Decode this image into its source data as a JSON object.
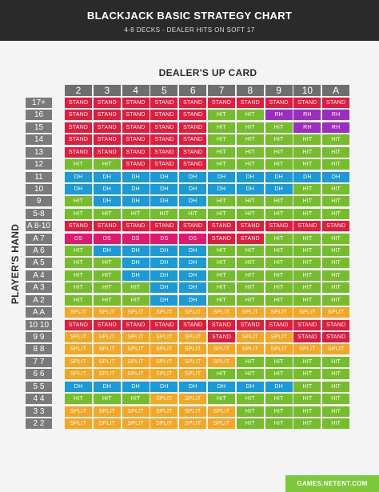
{
  "header": {
    "title": "BLACKJACK BASIC STRATEGY CHART",
    "subtitle": "4-8 DECKS - DEALER HITS ON SOFT 17"
  },
  "labels": {
    "dealer_up_card": "DEALER'S UP CARD",
    "players_hand": "PLAYER'S HAND"
  },
  "colors": {
    "STAND": "#e31b3c",
    "HIT": "#76bd2e",
    "DH": "#1a9bd7",
    "DS": "#e0196f",
    "RH": "#9d2cc0",
    "SPLIT": "#f5a623"
  },
  "dealer_cards": [
    "2",
    "3",
    "4",
    "5",
    "6",
    "7",
    "8",
    "9",
    "10",
    "A"
  ],
  "rows": [
    {
      "hand": "17+",
      "actions": [
        "STAND",
        "STAND",
        "STAND",
        "STAND",
        "STAND",
        "STAND",
        "STAND",
        "STAND",
        "STAND",
        "STAND"
      ]
    },
    {
      "hand": "16",
      "actions": [
        "STAND",
        "STAND",
        "STAND",
        "STAND",
        "STAND",
        "HIT",
        "HIT",
        "RH",
        "RH",
        "RH"
      ]
    },
    {
      "hand": "15",
      "actions": [
        "STAND",
        "STAND",
        "STAND",
        "STAND",
        "STAND",
        "HIT",
        "HIT",
        "HIT",
        "RH",
        "RH"
      ]
    },
    {
      "hand": "14",
      "actions": [
        "STAND",
        "STAND",
        "STAND",
        "STAND",
        "STAND",
        "HIT",
        "HIT",
        "HIT",
        "HIT",
        "HIT"
      ]
    },
    {
      "hand": "13",
      "actions": [
        "STAND",
        "STAND",
        "STAND",
        "STAND",
        "STAND",
        "HIT",
        "HIT",
        "HIT",
        "HIT",
        "HIT"
      ]
    },
    {
      "hand": "12",
      "actions": [
        "HIT",
        "HIT",
        "STAND",
        "STAND",
        "STAND",
        "HIT",
        "HIT",
        "HIT",
        "HIT",
        "HIT"
      ]
    },
    {
      "hand": "11",
      "actions": [
        "DH",
        "DH",
        "DH",
        "DH",
        "DH",
        "DH",
        "DH",
        "DH",
        "DH",
        "DH"
      ]
    },
    {
      "hand": "10",
      "actions": [
        "DH",
        "DH",
        "DH",
        "DH",
        "DH",
        "DH",
        "DH",
        "DH",
        "HIT",
        "HIT"
      ]
    },
    {
      "hand": "9",
      "actions": [
        "HIT",
        "DH",
        "DH",
        "DH",
        "DH",
        "HIT",
        "HIT",
        "HIT",
        "HIT",
        "HIT"
      ]
    },
    {
      "hand": "5-8",
      "actions": [
        "HIT",
        "HIT",
        "HIT",
        "HIT",
        "HIT",
        "HIT",
        "HIT",
        "HIT",
        "HIT",
        "HIT"
      ]
    },
    {
      "hand": "A 8-10",
      "actions": [
        "STAND",
        "STAND",
        "STAND",
        "STAND",
        "STAND",
        "STAND",
        "STAND",
        "STAND",
        "STAND",
        "STAND"
      ]
    },
    {
      "hand": "A 7",
      "actions": [
        "DS",
        "DS",
        "DS",
        "DS",
        "DS",
        "STAND",
        "STAND",
        "HIT",
        "HIT",
        "HIT"
      ]
    },
    {
      "hand": "A 6",
      "actions": [
        "HIT",
        "DH",
        "DH",
        "DH",
        "DH",
        "HIT",
        "HIT",
        "HIT",
        "HIT",
        "HIT"
      ]
    },
    {
      "hand": "A 5",
      "actions": [
        "HIT",
        "HIT",
        "DH",
        "DH",
        "DH",
        "HIT",
        "HIT",
        "HIT",
        "HIT",
        "HIT"
      ]
    },
    {
      "hand": "A 4",
      "actions": [
        "HIT",
        "HIT",
        "DH",
        "DH",
        "DH",
        "HIT",
        "HIT",
        "HIT",
        "HIT",
        "HIT"
      ]
    },
    {
      "hand": "A 3",
      "actions": [
        "HIT",
        "HIT",
        "HIT",
        "DH",
        "DH",
        "HIT",
        "HIT",
        "HIT",
        "HIT",
        "HIT"
      ]
    },
    {
      "hand": "A 2",
      "actions": [
        "HIT",
        "HIT",
        "HIT",
        "DH",
        "DH",
        "HIT",
        "HIT",
        "HIT",
        "HIT",
        "HIT"
      ]
    },
    {
      "hand": "A A",
      "actions": [
        "SPLIT",
        "SPLIT",
        "SPLIT",
        "SPLIT",
        "SPLIT",
        "SPLIT",
        "SPLIT",
        "SPLIT",
        "SPLIT",
        "SPLIT"
      ]
    },
    {
      "hand": "10 10",
      "actions": [
        "STAND",
        "STAND",
        "STAND",
        "STAND",
        "STAND",
        "STAND",
        "STAND",
        "STAND",
        "STAND",
        "STAND"
      ]
    },
    {
      "hand": "9 9",
      "actions": [
        "SPLIT",
        "SPLIT",
        "SPLIT",
        "SPLIT",
        "SPLIT",
        "STAND",
        "SPLIT",
        "SPLIT",
        "STAND",
        "STAND"
      ]
    },
    {
      "hand": "8 8",
      "actions": [
        "SPLIT",
        "SPLIT",
        "SPLIT",
        "SPLIT",
        "SPLIT",
        "SPLIT",
        "SPLIT",
        "SPLIT",
        "SPLIT",
        "SPLIT"
      ]
    },
    {
      "hand": "7 7",
      "actions": [
        "SPLIT",
        "SPLIT",
        "SPLIT",
        "SPLIT",
        "SPLIT",
        "SPLIT",
        "HIT",
        "HIT",
        "HIT",
        "HIT"
      ]
    },
    {
      "hand": "6 6",
      "actions": [
        "SPLIT",
        "SPLIT",
        "SPLIT",
        "SPLIT",
        "SPLIT",
        "HIT",
        "HIT",
        "HIT",
        "HIT",
        "HIT"
      ]
    },
    {
      "hand": "5 5",
      "actions": [
        "DH",
        "DH",
        "DH",
        "DH",
        "DH",
        "DH",
        "DH",
        "DH",
        "HIT",
        "HIT"
      ]
    },
    {
      "hand": "4 4",
      "actions": [
        "HIT",
        "HIT",
        "HIT",
        "SPLIT",
        "SPLIT",
        "HIT",
        "HIT",
        "HIT",
        "HIT",
        "HIT"
      ]
    },
    {
      "hand": "3 3",
      "actions": [
        "SPLIT",
        "SPLIT",
        "SPLIT",
        "SPLIT",
        "SPLIT",
        "SPLIT",
        "HIT",
        "HIT",
        "HIT",
        "HIT"
      ]
    },
    {
      "hand": "2 2",
      "actions": [
        "SPLIT",
        "SPLIT",
        "SPLIT",
        "SPLIT",
        "SPLIT",
        "SPLIT",
        "HIT",
        "HIT",
        "HIT",
        "HIT"
      ]
    }
  ],
  "footer": {
    "link": "GAMES.NETENT.COM"
  }
}
